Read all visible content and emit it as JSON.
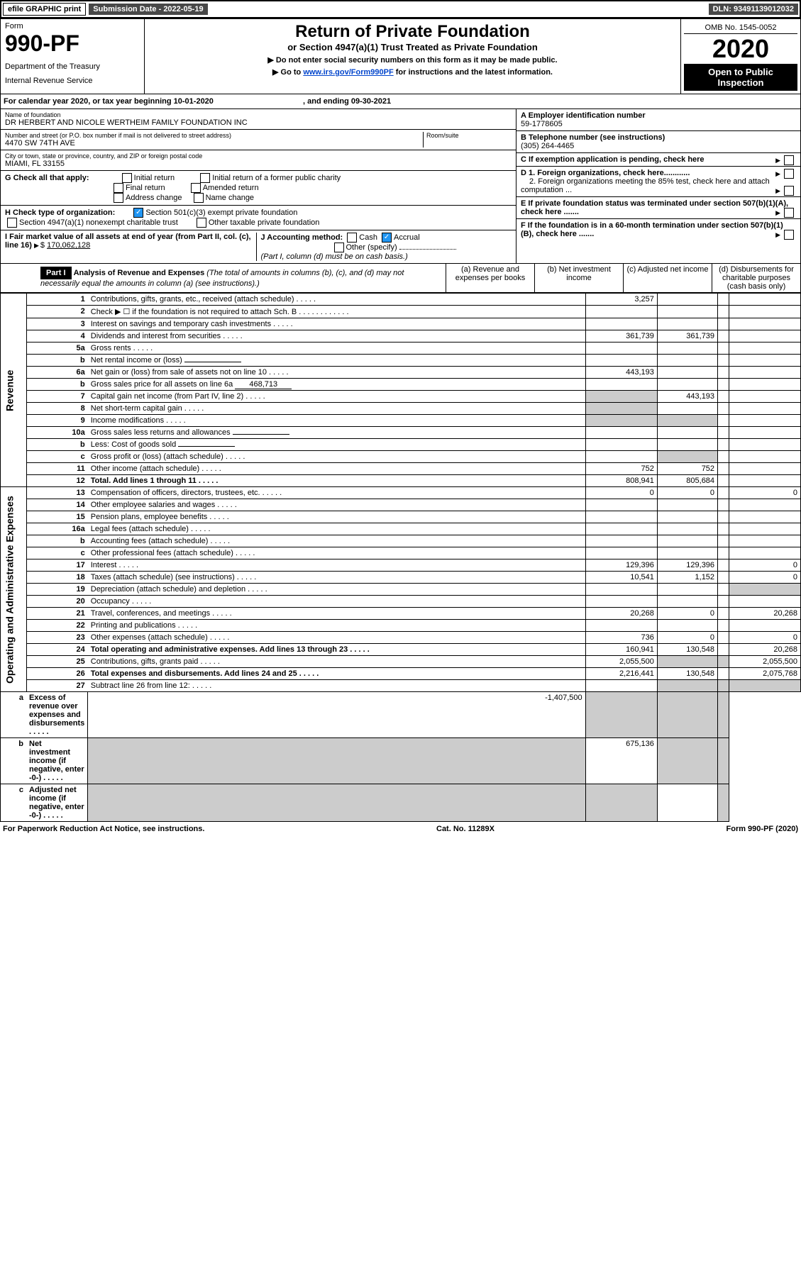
{
  "topbar": {
    "efile": "efile GRAPHIC print",
    "submission": "Submission Date - 2022-05-19",
    "dln": "DLN: 93491139012032"
  },
  "header": {
    "form": "Form",
    "number": "990-PF",
    "dept": "Department of the Treasury",
    "irs": "Internal Revenue Service",
    "title": "Return of Private Foundation",
    "sub": "or Section 4947(a)(1) Trust Treated as Private Foundation",
    "note1": "▶ Do not enter social security numbers on this form as it may be made public.",
    "note2": "▶ Go to ",
    "link": "www.irs.gov/Form990PF",
    "note3": " for instructions and the latest information.",
    "omb": "OMB No. 1545-0052",
    "year": "2020",
    "open": "Open to Public Inspection"
  },
  "cal": {
    "text": "For calendar year 2020, or tax year beginning 10-01-2020",
    "mid": ", and ending 09-30-2021"
  },
  "id": {
    "name_label": "Name of foundation",
    "name": "DR HERBERT AND NICOLE WERTHEIM FAMILY FOUNDATION INC",
    "addr_label": "Number and street (or P.O. box number if mail is not delivered to street address)",
    "room_label": "Room/suite",
    "addr": "4470 SW 74TH AVE",
    "city_label": "City or town, state or province, country, and ZIP or foreign postal code",
    "city": "MIAMI, FL  33155",
    "A": "A Employer identification number",
    "ein": "59-1778605",
    "B": "B Telephone number (see instructions)",
    "tel": "(305) 264-4465",
    "C": "C If exemption application is pending, check here",
    "D1": "D 1. Foreign organizations, check here............",
    "D2": "2. Foreign organizations meeting the 85% test, check here and attach computation ...",
    "E": "E  If private foundation status was terminated under section 507(b)(1)(A), check here .......",
    "F": "F  If the foundation is in a 60-month termination under section 507(b)(1)(B), check here .......",
    "G": "G Check all that apply:",
    "G1": "Initial return",
    "G2": "Initial return of a former public charity",
    "G3": "Final return",
    "G4": "Amended return",
    "G5": "Address change",
    "G6": "Name change",
    "H": "H Check type of organization:",
    "H1": "Section 501(c)(3) exempt private foundation",
    "H2": "Section 4947(a)(1) nonexempt charitable trust",
    "H3": "Other taxable private foundation",
    "I": "I Fair market value of all assets at end of year (from Part II, col. (c), line 16)",
    "Iv": "170,062,128",
    "J": "J Accounting method:",
    "J1": "Cash",
    "J2": "Accrual",
    "J3": "Other (specify)",
    "Jnote": "(Part I, column (d) must be on cash basis.)"
  },
  "part1": {
    "label": "Part I",
    "title": "Analysis of Revenue and Expenses",
    "note": "(The total of amounts in columns (b), (c), and (d) may not necessarily equal the amounts in column (a) (see instructions).)",
    "cols": {
      "a": "(a) Revenue and expenses per books",
      "b": "(b) Net investment income",
      "c": "(c) Adjusted net income",
      "d": "(d) Disbursements for charitable purposes (cash basis only)"
    }
  },
  "sections": {
    "rev": "Revenue",
    "exp": "Operating and Administrative Expenses"
  },
  "rows": [
    {
      "n": "1",
      "d": "Contributions, gifts, grants, etc., received (attach schedule)",
      "a": "3,257"
    },
    {
      "n": "2",
      "d": "Check ▶ ☐ if the foundation is not required to attach Sch. B",
      "dots": true
    },
    {
      "n": "3",
      "d": "Interest on savings and temporary cash investments"
    },
    {
      "n": "4",
      "d": "Dividends and interest from securities",
      "a": "361,739",
      "b": "361,739"
    },
    {
      "n": "5a",
      "d": "Gross rents"
    },
    {
      "n": "b",
      "d": "Net rental income or (loss)",
      "inline": true
    },
    {
      "n": "6a",
      "d": "Net gain or (loss) from sale of assets not on line 10",
      "a": "443,193"
    },
    {
      "n": "b",
      "d": "Gross sales price for all assets on line 6a",
      "inline": "468,713"
    },
    {
      "n": "7",
      "d": "Capital gain net income (from Part IV, line 2)",
      "b": "443,193",
      "sa": true
    },
    {
      "n": "8",
      "d": "Net short-term capital gain",
      "sa": true
    },
    {
      "n": "9",
      "d": "Income modifications",
      "sa": true,
      "sb": true
    },
    {
      "n": "10a",
      "d": "Gross sales less returns and allowances",
      "inline": true
    },
    {
      "n": "b",
      "d": "Less: Cost of goods sold",
      "inline": true
    },
    {
      "n": "c",
      "d": "Gross profit or (loss) (attach schedule)",
      "sb": true
    },
    {
      "n": "11",
      "d": "Other income (attach schedule)",
      "a": "752",
      "b": "752"
    },
    {
      "n": "12",
      "d": "Total. Add lines 1 through 11",
      "bold": true,
      "a": "808,941",
      "b": "805,684"
    },
    {
      "n": "13",
      "d": "Compensation of officers, directors, trustees, etc.",
      "a": "0",
      "b": "0",
      "dd": "0"
    },
    {
      "n": "14",
      "d": "Other employee salaries and wages"
    },
    {
      "n": "15",
      "d": "Pension plans, employee benefits"
    },
    {
      "n": "16a",
      "d": "Legal fees (attach schedule)"
    },
    {
      "n": "b",
      "d": "Accounting fees (attach schedule)"
    },
    {
      "n": "c",
      "d": "Other professional fees (attach schedule)"
    },
    {
      "n": "17",
      "d": "Interest",
      "a": "129,396",
      "b": "129,396",
      "dd": "0"
    },
    {
      "n": "18",
      "d": "Taxes (attach schedule) (see instructions)",
      "a": "10,541",
      "b": "1,152",
      "dd": "0"
    },
    {
      "n": "19",
      "d": "Depreciation (attach schedule) and depletion",
      "sd": true
    },
    {
      "n": "20",
      "d": "Occupancy"
    },
    {
      "n": "21",
      "d": "Travel, conferences, and meetings",
      "a": "20,268",
      "b": "0",
      "dd": "20,268"
    },
    {
      "n": "22",
      "d": "Printing and publications"
    },
    {
      "n": "23",
      "d": "Other expenses (attach schedule)",
      "a": "736",
      "b": "0",
      "dd": "0"
    },
    {
      "n": "24",
      "d": "Total operating and administrative expenses. Add lines 13 through 23",
      "bold": true,
      "a": "160,941",
      "b": "130,548",
      "dd": "20,268"
    },
    {
      "n": "25",
      "d": "Contributions, gifts, grants paid",
      "a": "2,055,500",
      "sb": true,
      "sc": true,
      "dd": "2,055,500"
    },
    {
      "n": "26",
      "d": "Total expenses and disbursements. Add lines 24 and 25",
      "bold": true,
      "a": "2,216,441",
      "b": "130,548",
      "dd": "2,075,768"
    },
    {
      "n": "27",
      "d": "Subtract line 26 from line 12:",
      "sb": true,
      "sc": true,
      "sd": true
    },
    {
      "n": "a",
      "d": "Excess of revenue over expenses and disbursements",
      "bold": true,
      "a": "-1,407,500",
      "sb": true,
      "sc": true,
      "sd": true
    },
    {
      "n": "b",
      "d": "Net investment income (if negative, enter -0-)",
      "bold": true,
      "sa": true,
      "b": "675,136",
      "sc": true,
      "sd": true
    },
    {
      "n": "c",
      "d": "Adjusted net income (if negative, enter -0-)",
      "bold": true,
      "sa": true,
      "sb": true,
      "sd": true
    }
  ],
  "footer": {
    "l": "For Paperwork Reduction Act Notice, see instructions.",
    "c": "Cat. No. 11289X",
    "r": "Form 990-PF (2020)"
  }
}
